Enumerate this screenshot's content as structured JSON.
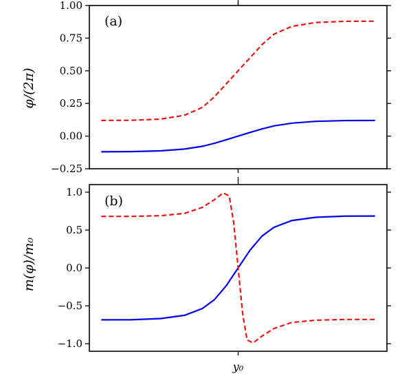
{
  "chart_data": [
    {
      "type": "line",
      "panel_label": "(a)",
      "ylabel": "φ/(2π)",
      "xlabel": "",
      "ylim": [
        -0.25,
        1.0
      ],
      "yticks": [
        -0.25,
        0.0,
        0.25,
        0.5,
        0.75,
        1.0
      ],
      "ytick_labels": [
        "−0.25",
        "0.00",
        "0.25",
        "0.50",
        "0.75",
        "1.00"
      ],
      "xlim": [
        -5,
        5
      ],
      "grid": false,
      "series": [
        {
          "color": "#0000ee",
          "style": "solid",
          "x": [
            -4.6,
            -3.6,
            -2.6,
            -1.8,
            -1.2,
            -0.8,
            -0.4,
            0,
            0.4,
            0.8,
            1.2,
            1.8,
            2.6,
            3.6,
            4.6
          ],
          "y": [
            -0.12,
            -0.119,
            -0.113,
            -0.099,
            -0.078,
            -0.055,
            -0.028,
            0.0,
            0.028,
            0.055,
            0.078,
            0.099,
            0.113,
            0.119,
            0.12
          ]
        },
        {
          "color": "#ee1111",
          "style": "dashed",
          "x": [
            -4.6,
            -3.6,
            -2.6,
            -1.8,
            -1.2,
            -0.8,
            -0.4,
            0,
            0.4,
            0.8,
            1.2,
            1.8,
            2.6,
            3.6,
            4.6
          ],
          "y": [
            0.12,
            0.121,
            0.13,
            0.16,
            0.22,
            0.3,
            0.4,
            0.5,
            0.6,
            0.7,
            0.78,
            0.84,
            0.87,
            0.879,
            0.88
          ]
        }
      ]
    },
    {
      "type": "line",
      "panel_label": "(b)",
      "ylabel": "m(φ)/m₀",
      "xlabel": "",
      "ylim": [
        -1.1,
        1.1
      ],
      "yticks": [
        -1.0,
        -0.5,
        0.0,
        0.5,
        1.0
      ],
      "ytick_labels": [
        "−1.0",
        "−0.5",
        "0.0",
        "0.5",
        "1.0"
      ],
      "xticks": [
        0
      ],
      "xtick_labels": [
        "y₀"
      ],
      "xlim": [
        -5,
        5
      ],
      "grid": false,
      "series": [
        {
          "color": "#0000ee",
          "style": "solid",
          "x": [
            -4.6,
            -3.6,
            -2.6,
            -1.8,
            -1.2,
            -0.8,
            -0.4,
            0,
            0.4,
            0.8,
            1.2,
            1.8,
            2.6,
            3.6,
            4.6
          ],
          "y": [
            -0.685,
            -0.684,
            -0.668,
            -0.625,
            -0.535,
            -0.42,
            -0.235,
            0.0,
            0.235,
            0.42,
            0.535,
            0.625,
            0.668,
            0.684,
            0.685
          ]
        },
        {
          "color": "#ee1111",
          "style": "dashed",
          "x": [
            -4.6,
            -3.6,
            -2.6,
            -1.8,
            -1.2,
            -0.8,
            -0.5,
            -0.3,
            -0.15,
            0,
            0.15,
            0.3,
            0.5,
            0.8,
            1.2,
            1.8,
            2.6,
            3.6,
            4.6
          ],
          "y": [
            0.68,
            0.68,
            0.69,
            0.72,
            0.8,
            0.9,
            0.99,
            0.95,
            0.6,
            0.0,
            -0.6,
            -0.95,
            -0.99,
            -0.9,
            -0.8,
            -0.72,
            -0.69,
            -0.68,
            -0.68
          ]
        }
      ]
    }
  ]
}
